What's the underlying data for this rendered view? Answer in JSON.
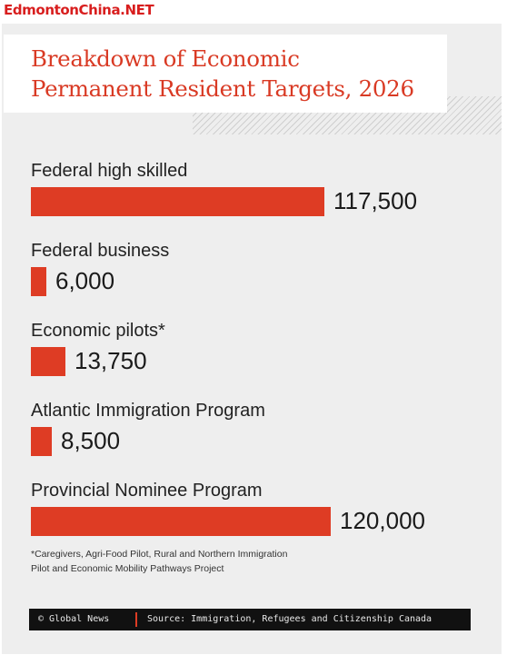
{
  "watermark": "EdmontonChina.NET",
  "title_lines": [
    "Breakdown of Economic",
    "Permanent Resident Targets, 2026"
  ],
  "chart_data": {
    "type": "bar",
    "orientation": "horizontal",
    "title": "Breakdown of Economic Permanent Resident Targets, 2026",
    "categories": [
      "Federal high skilled",
      "Federal business",
      "Economic pilots*",
      "Atlantic Immigration Program",
      "Provincial Nominee Program"
    ],
    "values": [
      117500,
      6000,
      13750,
      8500,
      120000
    ],
    "value_labels": [
      "117,500",
      "6,000",
      "13,750",
      "8,500",
      "120,000"
    ],
    "bar_color": "#de3c24",
    "grid": false
  },
  "footnote_lines": [
    "*Caregivers, Agri-Food Pilot, Rural and Northern Immigration",
    "Pilot and Economic Mobility Pathways Project"
  ],
  "footer": {
    "brand": "© Global News",
    "source": "Source: Immigration, Refugees and Citizenship Canada"
  }
}
